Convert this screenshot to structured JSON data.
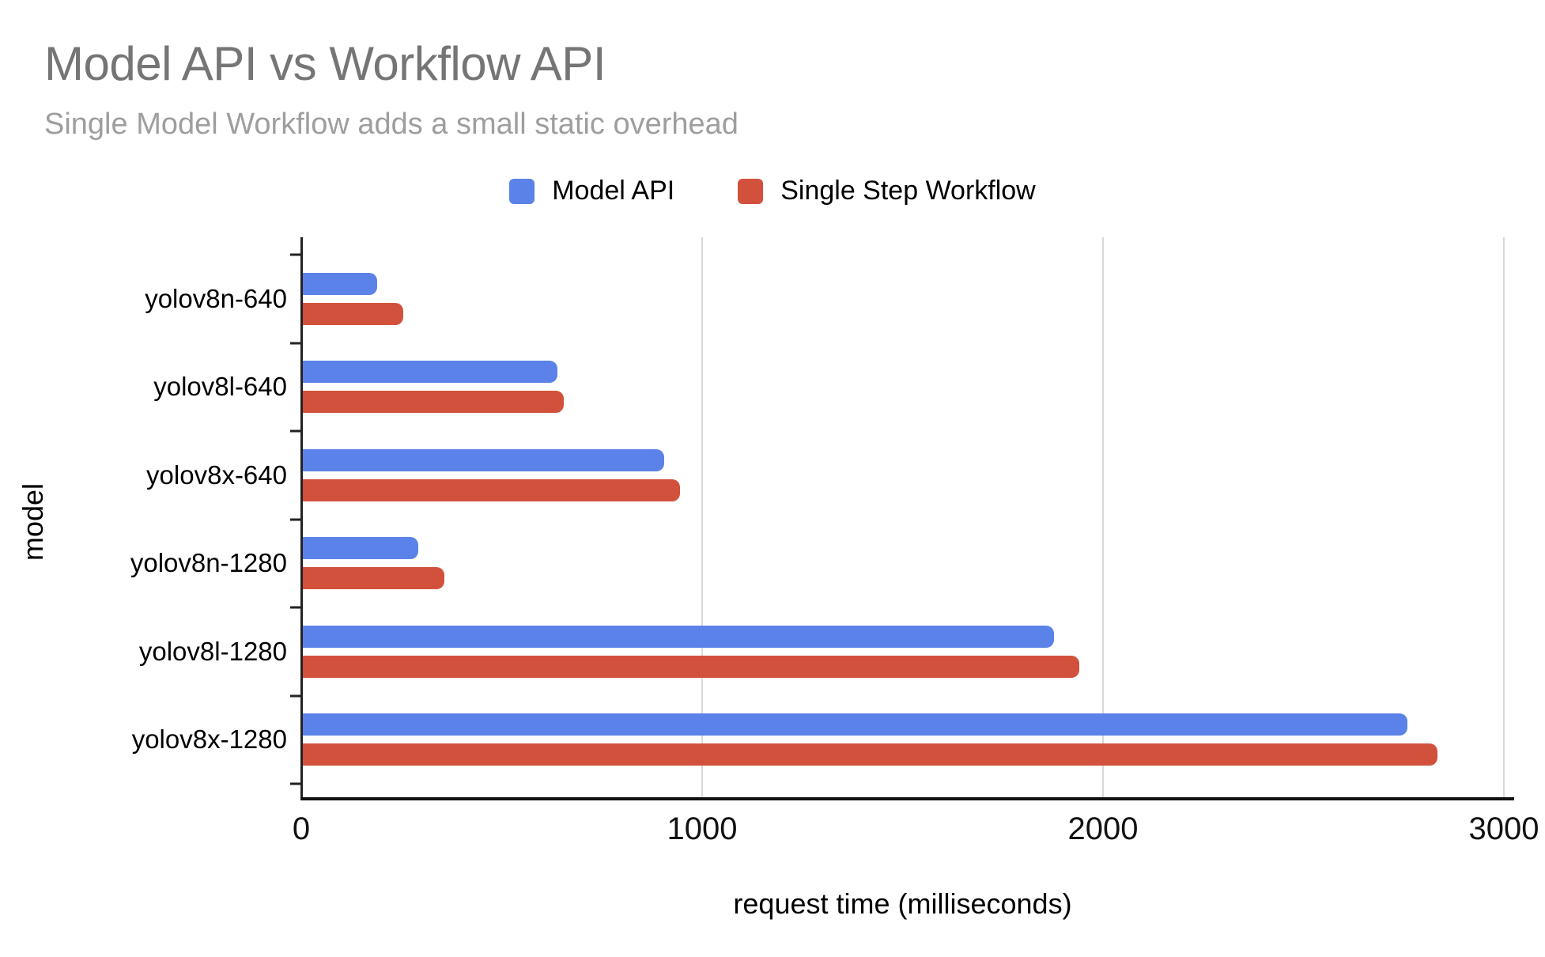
{
  "chart_data": {
    "type": "bar",
    "orientation": "horizontal",
    "title": "Model API vs Workflow API",
    "subtitle": "Single Model Workflow adds a small static overhead",
    "categories": [
      "yolov8n-640",
      "yolov8l-640",
      "yolov8x-640",
      "yolov8n-1280",
      "yolov8l-1280",
      "yolov8x-1280"
    ],
    "series": [
      {
        "name": "Model API",
        "color": "#5B82E8",
        "values": [
          190,
          640,
          905,
          292,
          1878,
          2760
        ]
      },
      {
        "name": "Single Step Workflow",
        "color": "#D2513D",
        "values": [
          255,
          655,
          945,
          357,
          1940,
          2835
        ]
      }
    ],
    "xlabel": "request time (milliseconds)",
    "ylabel": "model",
    "xlim": [
      0,
      3000
    ],
    "x_ticks": [
      0,
      1000,
      2000,
      3000
    ],
    "grid": true,
    "legend_position": "top"
  },
  "colors": {
    "background": "#ffffff",
    "title_text": "#757575",
    "subtitle_text": "#9e9e9e",
    "axis_text": "#000000",
    "gridline": "#d9d9d9",
    "axis_line": "#222222"
  }
}
